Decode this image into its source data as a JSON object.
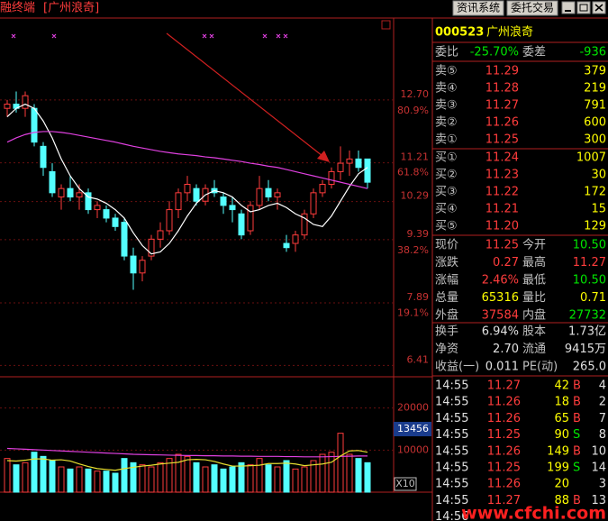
{
  "header": {
    "title": "融终端",
    "stock": "[广州浪奇]",
    "buttons": [
      "资讯系统",
      "委托交易"
    ]
  },
  "chart_data": [
    {
      "type": "candlestick",
      "ylim": [
        6.14,
        14.64
      ],
      "yticks": [
        {
          "value": 12.7,
          "label": "12.70"
        },
        11.21,
        10.29,
        9.39,
        7.89,
        6.41
      ],
      "pct_ticks": [
        {
          "value": 12.44,
          "label": "80.9%"
        },
        {
          "value": 10.98,
          "label": "61.8%"
        },
        {
          "value": 9.13,
          "label": "38.2%"
        },
        {
          "value": 7.65,
          "label": "19.1%"
        }
      ],
      "grid": true,
      "up_color": "#ff3c3c",
      "down_color": "#54ffff",
      "open": [
        12.5,
        12.6,
        12.5,
        12.5,
        11.6,
        11.0,
        10.4,
        10.6,
        10.4,
        10.5,
        10.1,
        10.1,
        9.9,
        9.8,
        9.0,
        8.6,
        9.0,
        9.4,
        9.6,
        10.1,
        10.5,
        10.6,
        10.3,
        10.6,
        10.4,
        10.2,
        10.0,
        9.6,
        10.2,
        10.6,
        10.4,
        9.3,
        9.3,
        9.5,
        10.0,
        10.5,
        10.7,
        11.0,
        11.2,
        11.3,
        11.3
      ],
      "high": [
        12.7,
        12.9,
        12.9,
        12.6,
        11.7,
        11.2,
        10.7,
        10.9,
        10.7,
        10.6,
        10.3,
        10.2,
        10.0,
        9.9,
        9.2,
        9.0,
        9.5,
        9.8,
        10.3,
        10.6,
        10.9,
        10.7,
        10.7,
        10.8,
        10.5,
        10.4,
        10.1,
        10.3,
        10.9,
        10.8,
        10.6,
        9.5,
        9.6,
        10.1,
        10.6,
        10.8,
        11.1,
        11.6,
        11.5,
        11.5,
        11.3
      ],
      "low": [
        12.3,
        12.4,
        12.3,
        11.6,
        10.9,
        10.4,
        10.1,
        10.3,
        10.1,
        10.0,
        9.9,
        9.8,
        9.6,
        8.9,
        8.2,
        8.4,
        8.9,
        9.2,
        9.5,
        9.9,
        10.3,
        10.2,
        10.2,
        10.4,
        10.0,
        9.8,
        9.4,
        9.5,
        10.1,
        10.3,
        10.1,
        9.1,
        9.1,
        9.4,
        9.9,
        10.4,
        10.6,
        10.8,
        10.9,
        11.0,
        10.6
      ],
      "close": [
        12.6,
        12.5,
        12.8,
        11.7,
        11.1,
        10.5,
        10.6,
        10.4,
        10.5,
        10.1,
        10.2,
        9.9,
        9.7,
        9.0,
        8.6,
        8.9,
        9.4,
        9.6,
        10.1,
        10.5,
        10.7,
        10.3,
        10.6,
        10.5,
        10.2,
        10.1,
        9.5,
        10.2,
        10.6,
        10.4,
        10.5,
        9.2,
        9.5,
        10.0,
        10.5,
        10.7,
        11.0,
        11.2,
        11.3,
        11.1,
        10.75
      ],
      "series": [
        {
          "color": "#ffffff",
          "values": [
            12.3,
            12.5,
            12.6,
            12.5,
            12.2,
            11.8,
            11.3,
            10.9,
            10.6,
            10.4,
            10.35,
            10.25,
            10.1,
            9.9,
            9.55,
            9.25,
            9.05,
            9.1,
            9.3,
            9.6,
            9.95,
            10.25,
            10.45,
            10.55,
            10.5,
            10.4,
            10.2,
            10.05,
            10.1,
            10.2,
            10.25,
            10.15,
            10.0,
            9.9,
            9.75,
            9.7,
            9.95,
            10.3,
            10.65,
            10.95,
            11.1
          ]
        },
        {
          "color": "#e040e0",
          "values": [
            11.7,
            11.8,
            11.88,
            11.93,
            11.95,
            11.95,
            11.93,
            11.9,
            11.86,
            11.82,
            11.78,
            11.74,
            11.7,
            11.65,
            11.6,
            11.56,
            11.52,
            11.48,
            11.45,
            11.42,
            11.4,
            11.38,
            11.35,
            11.33,
            11.3,
            11.27,
            11.24,
            11.2,
            11.17,
            11.13,
            11.1,
            11.05,
            11.0,
            10.95,
            10.9,
            10.85,
            10.8,
            10.75,
            10.7,
            10.65,
            10.6
          ]
        }
      ]
    },
    {
      "type": "bar",
      "ylim": [
        0,
        27000
      ],
      "yticks": [
        20000,
        10000
      ],
      "values": [
        8000,
        6500,
        7000,
        9500,
        8500,
        7500,
        6000,
        5500,
        6000,
        5500,
        5000,
        5000,
        4500,
        8000,
        7000,
        6500,
        6000,
        7000,
        8000,
        9000,
        8500,
        7000,
        6000,
        6500,
        5500,
        6000,
        7000,
        6500,
        8000,
        6500,
        6000,
        7500,
        5500,
        6000,
        7500,
        9000,
        9500,
        14000,
        9000,
        8000,
        7000
      ],
      "series": [
        {
          "color": "#e040e0",
          "values": [
            10400,
            10300,
            10200,
            10100,
            10000,
            9900,
            9800,
            9700,
            9600,
            9500,
            9400,
            9300,
            9200,
            9100,
            9000,
            8950,
            8900,
            8850,
            8800,
            8750,
            8700,
            8700,
            8650,
            8650,
            8600,
            8600,
            8550,
            8550,
            8500,
            8500,
            8500,
            8450,
            8450,
            8400,
            8400,
            8400,
            8450,
            8500,
            8550,
            8600,
            8600
          ]
        },
        {
          "color": "#e8e030",
          "values": [
            7500,
            7400,
            7600,
            7900,
            7900,
            7600,
            7700,
            7400,
            6700,
            6100,
            5600,
            5400,
            5200,
            5600,
            5900,
            6200,
            6400,
            6700,
            6900,
            7100,
            7700,
            7800,
            7700,
            7300,
            6700,
            6200,
            6200,
            6300,
            6400,
            6800,
            6800,
            6900,
            6700,
            6300,
            6500,
            6700,
            7100,
            8600,
            9800,
            9900,
            9500
          ]
        }
      ],
      "cursor_label": "13456",
      "scale_label": "X10"
    }
  ],
  "quote": {
    "code": "000523",
    "name": "广州浪奇",
    "ratio": [
      {
        "label": "委比",
        "value": "-25.70%",
        "color": "#00e600"
      },
      {
        "label": "委差",
        "value": "-936",
        "color": "#00e600"
      }
    ],
    "asks": [
      {
        "label": "卖⑤",
        "price": "11.29",
        "volume": "379"
      },
      {
        "label": "卖④",
        "price": "11.28",
        "volume": "219"
      },
      {
        "label": "卖③",
        "price": "11.27",
        "volume": "791"
      },
      {
        "label": "卖②",
        "price": "11.26",
        "volume": "600"
      },
      {
        "label": "卖①",
        "price": "11.25",
        "volume": "300"
      }
    ],
    "bids": [
      {
        "label": "买①",
        "price": "11.24",
        "volume": "1007"
      },
      {
        "label": "买②",
        "price": "11.23",
        "volume": "30"
      },
      {
        "label": "买③",
        "price": "11.22",
        "volume": "172"
      },
      {
        "label": "买④",
        "price": "11.21",
        "volume": "15"
      },
      {
        "label": "买⑤",
        "price": "11.20",
        "volume": "129"
      }
    ],
    "stats": [
      [
        {
          "label": "现价",
          "value": "11.25",
          "color": "#ff3c3c"
        },
        {
          "label": "今开",
          "value": "10.50",
          "color": "#00e600"
        }
      ],
      [
        {
          "label": "涨跌",
          "value": "0.27",
          "color": "#ff3c3c"
        },
        {
          "label": "最高",
          "value": "11.27",
          "color": "#ff3c3c"
        }
      ],
      [
        {
          "label": "涨幅",
          "value": "2.46%",
          "color": "#ff3c3c"
        },
        {
          "label": "最低",
          "value": "10.50",
          "color": "#00e600"
        }
      ],
      [
        {
          "label": "总量",
          "value": "65316",
          "color": "#ffff00"
        },
        {
          "label": "量比",
          "value": "0.71",
          "color": "#ffff00"
        }
      ],
      [
        {
          "label": "外盘",
          "value": "37584",
          "color": "#ff3c3c"
        },
        {
          "label": "内盘",
          "value": "27732",
          "color": "#00e600"
        }
      ]
    ],
    "finance": [
      [
        {
          "label": "换手",
          "value": "6.94%"
        },
        {
          "label": "股本",
          "value": "1.73亿"
        }
      ],
      [
        {
          "label": "净资",
          "value": "2.70"
        },
        {
          "label": "流通",
          "value": "9415万"
        }
      ],
      [
        {
          "label": "收益(一)",
          "value": "0.011"
        },
        {
          "label": "PE(动)",
          "value": "265.0"
        }
      ]
    ],
    "side_colors": {
      "B": "#ff3c3c",
      "S": "#00e600"
    },
    "trades": [
      [
        "14:55",
        "11.27",
        "42",
        "B",
        "4"
      ],
      [
        "14:55",
        "11.26",
        "18",
        "B",
        "2"
      ],
      [
        "14:55",
        "11.26",
        "65",
        "B",
        "7"
      ],
      [
        "14:55",
        "11.25",
        "90",
        "S",
        "8"
      ],
      [
        "14:55",
        "11.26",
        "149",
        "B",
        "10"
      ],
      [
        "14:55",
        "11.25",
        "199",
        "S",
        "14"
      ],
      [
        "14:55",
        "11.26",
        "20",
        "",
        "3"
      ],
      [
        "14:55",
        "11.27",
        "88",
        "B",
        "13"
      ],
      [
        "14:56",
        "",
        "",
        "",
        ""
      ]
    ],
    "watermark": "www.cfchi.com"
  }
}
